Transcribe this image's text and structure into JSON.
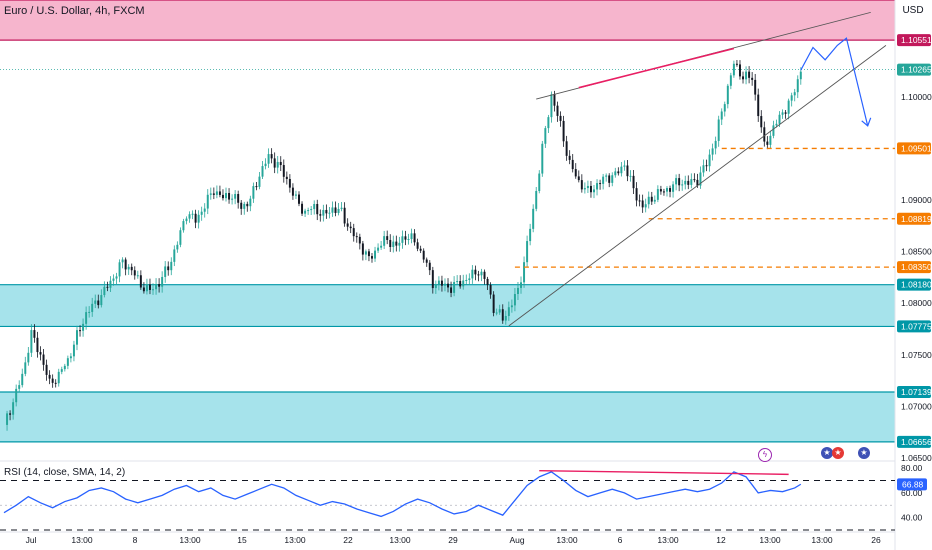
{
  "header": {
    "symbol": "Euro / U.S. Dollar, 4h, FXCM",
    "currency": "USD",
    "rsi_legend": "RSI (14, close, SMA, 14, 2)"
  },
  "colors": {
    "bull": "#26a69a",
    "bear": "#131722",
    "supply_zone": "#f6b5cd",
    "supply_border": "#c2185b",
    "demand_zone": "#a6e3eb",
    "demand_border": "#0097a7",
    "projection": "#2962ff",
    "support_dash": "#f57c00",
    "divergence": "#e91e63",
    "rsi_line": "#2962ff",
    "current_price": "#26a69a"
  },
  "chart_data": [
    {
      "type": "candlestick",
      "title": "Euro / U.S. Dollar, 4h, FXCM",
      "x_tick_labels": [
        "Jul",
        "13:00",
        "8",
        "13:00",
        "15",
        "13:00",
        "22",
        "13:00",
        "29",
        "13:00",
        "Aug",
        "13:00",
        "6",
        "13:00",
        "12",
        "13:00",
        "19",
        "13:00",
        "26"
      ],
      "y_tick_labels": [
        "1.10000",
        "1.09000",
        "1.08500",
        "1.08000",
        "1.07500",
        "1.07000",
        "1.06500"
      ],
      "ylim": [
        1.0648,
        1.1094
      ],
      "price_labels": [
        {
          "text": "1.10551",
          "value": 1.10551,
          "kind": "supply"
        },
        {
          "text": "1.10265",
          "value": 1.10265,
          "kind": "current"
        },
        {
          "text": "1.09501",
          "value": 1.09501,
          "kind": "support"
        },
        {
          "text": "1.08819",
          "value": 1.08819,
          "kind": "support"
        },
        {
          "text": "1.08350",
          "value": 1.0835,
          "kind": "support"
        },
        {
          "text": "1.08180",
          "value": 1.0818,
          "kind": "demand"
        },
        {
          "text": "1.07775",
          "value": 1.07775,
          "kind": "demand"
        },
        {
          "text": "1.07139",
          "value": 1.07139,
          "kind": "demand"
        },
        {
          "text": "1.06656",
          "value": 1.06656,
          "kind": "demand"
        }
      ],
      "zones": [
        {
          "name": "supply",
          "from": 1.10551,
          "to": 1.1094
        },
        {
          "name": "demand-upper",
          "from": 1.07775,
          "to": 1.0818
        },
        {
          "name": "demand-lower",
          "from": 1.06656,
          "to": 1.07139
        }
      ],
      "close_path": [
        [
          0,
          1.0682
        ],
        [
          3,
          1.0705
        ],
        [
          6,
          1.073
        ],
        [
          9,
          1.077
        ],
        [
          12,
          1.075
        ],
        [
          15,
          1.0722
        ],
        [
          18,
          1.073
        ],
        [
          21,
          1.0745
        ],
        [
          24,
          1.0768
        ],
        [
          27,
          1.079
        ],
        [
          30,
          1.08
        ],
        [
          33,
          1.0812
        ],
        [
          36,
          1.0825
        ],
        [
          39,
          1.084
        ],
        [
          42,
          1.0832
        ],
        [
          45,
          1.0818
        ],
        [
          48,
          1.0812
        ],
        [
          51,
          1.082
        ],
        [
          54,
          1.0835
        ],
        [
          57,
          1.0858
        ],
        [
          60,
          1.0888
        ],
        [
          63,
          1.088
        ],
        [
          66,
          1.0895
        ],
        [
          69,
          1.091
        ],
        [
          72,
          1.0902
        ],
        [
          75,
          1.0905
        ],
        [
          78,
          1.0893
        ],
        [
          81,
          1.09
        ],
        [
          84,
          1.0925
        ],
        [
          87,
          1.0942
        ],
        [
          90,
          1.0935
        ],
        [
          93,
          1.092
        ],
        [
          96,
          1.09
        ],
        [
          99,
          1.0888
        ],
        [
          102,
          1.0893
        ],
        [
          105,
          1.0885
        ],
        [
          108,
          1.0892
        ],
        [
          111,
          1.0888
        ],
        [
          114,
          1.087
        ],
        [
          117,
          1.0858
        ],
        [
          120,
          1.0842
        ],
        [
          123,
          1.0855
        ],
        [
          126,
          1.0862
        ],
        [
          129,
          1.0855
        ],
        [
          132,
          1.0866
        ],
        [
          135,
          1.086
        ],
        [
          138,
          1.0845
        ],
        [
          141,
          1.082
        ],
        [
          144,
          1.0818
        ],
        [
          147,
          1.0815
        ],
        [
          150,
          1.082
        ],
        [
          153,
          1.0825
        ],
        [
          156,
          1.0832
        ],
        [
          159,
          1.0818
        ],
        [
          161,
          1.0795
        ],
        [
          164,
          1.0785
        ],
        [
          167,
          1.08
        ],
        [
          169,
          1.0812
        ],
        [
          171,
          1.084
        ],
        [
          174,
          1.089
        ],
        [
          177,
          1.095
        ],
        [
          180,
          1.1002
        ],
        [
          183,
          1.0972
        ],
        [
          186,
          1.0935
        ],
        [
          189,
          1.0918
        ],
        [
          192,
          1.0908
        ],
        [
          195,
          1.0915
        ],
        [
          198,
          1.0922
        ],
        [
          201,
          1.0924
        ],
        [
          204,
          1.0935
        ],
        [
          207,
          1.091
        ],
        [
          210,
          1.0893
        ],
        [
          213,
          1.0902
        ],
        [
          216,
          1.0908
        ],
        [
          219,
          1.0912
        ],
        [
          222,
          1.0918
        ],
        [
          225,
          1.0916
        ],
        [
          228,
          1.092
        ],
        [
          231,
          1.0935
        ],
        [
          234,
          1.096
        ],
        [
          237,
          1.0998
        ],
        [
          240,
          1.1032
        ],
        [
          243,
          1.102
        ],
        [
          246,
          1.1018
        ],
        [
          248,
          1.0985
        ],
        [
          250,
          1.0952
        ],
        [
          253,
          1.097
        ],
        [
          256,
          1.0985
        ],
        [
          259,
          1.0998
        ],
        [
          262,
          1.1026
        ]
      ],
      "x_max": 291,
      "projection_path": [
        [
          262,
          1.1026
        ],
        [
          266,
          1.1048
        ],
        [
          270,
          1.1036
        ],
        [
          274,
          1.105
        ],
        [
          277,
          1.1057
        ],
        [
          284,
          1.0972
        ]
      ]
    },
    {
      "type": "line",
      "title": "RSI (14, close, SMA, 14, 2)",
      "current_value_label": "66.88",
      "y_tick_labels": [
        "80.00",
        "60.00",
        "40.00"
      ],
      "ylim": [
        30,
        85
      ],
      "levels": [
        70,
        50,
        30
      ],
      "values": [
        [
          0,
          44
        ],
        [
          4,
          50
        ],
        [
          8,
          57
        ],
        [
          12,
          52
        ],
        [
          16,
          48
        ],
        [
          20,
          53
        ],
        [
          24,
          56
        ],
        [
          28,
          62
        ],
        [
          32,
          64
        ],
        [
          36,
          61
        ],
        [
          40,
          55
        ],
        [
          44,
          52
        ],
        [
          48,
          55
        ],
        [
          52,
          58
        ],
        [
          56,
          63
        ],
        [
          60,
          66
        ],
        [
          64,
          61
        ],
        [
          68,
          64
        ],
        [
          72,
          58
        ],
        [
          76,
          55
        ],
        [
          80,
          59
        ],
        [
          84,
          63
        ],
        [
          88,
          67
        ],
        [
          92,
          64
        ],
        [
          96,
          58
        ],
        [
          100,
          54
        ],
        [
          104,
          50
        ],
        [
          108,
          53
        ],
        [
          112,
          51
        ],
        [
          116,
          47
        ],
        [
          120,
          44
        ],
        [
          124,
          41
        ],
        [
          128,
          45
        ],
        [
          132,
          51
        ],
        [
          136,
          55
        ],
        [
          140,
          52
        ],
        [
          144,
          47
        ],
        [
          148,
          43
        ],
        [
          152,
          45
        ],
        [
          156,
          50
        ],
        [
          160,
          46
        ],
        [
          164,
          42
        ],
        [
          168,
          54
        ],
        [
          172,
          66
        ],
        [
          176,
          73
        ],
        [
          180,
          77
        ],
        [
          184,
          70
        ],
        [
          188,
          62
        ],
        [
          192,
          57
        ],
        [
          196,
          60
        ],
        [
          200,
          63
        ],
        [
          204,
          60
        ],
        [
          208,
          55
        ],
        [
          212,
          57
        ],
        [
          216,
          59
        ],
        [
          220,
          61
        ],
        [
          224,
          63
        ],
        [
          228,
          61
        ],
        [
          232,
          63
        ],
        [
          236,
          68
        ],
        [
          240,
          77
        ],
        [
          244,
          73
        ],
        [
          248,
          60
        ],
        [
          252,
          62
        ],
        [
          256,
          61
        ],
        [
          260,
          64
        ],
        [
          262,
          67
        ]
      ]
    }
  ]
}
